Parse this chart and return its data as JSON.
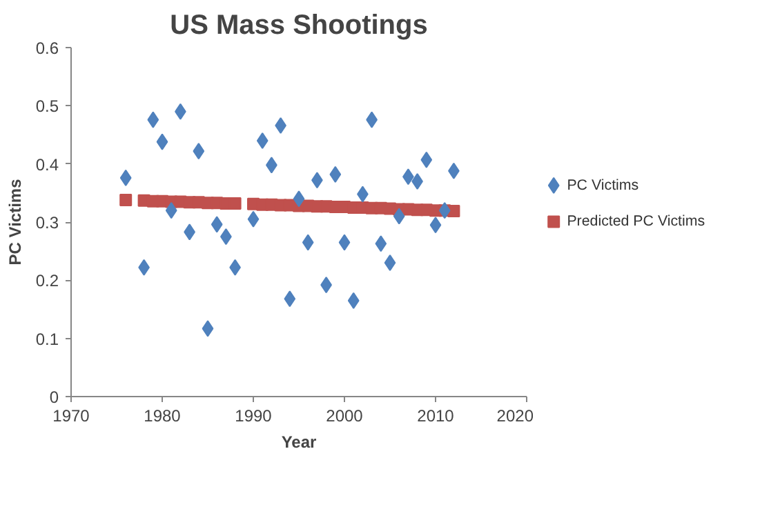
{
  "chart_data": {
    "type": "scatter",
    "title": "US Mass Shootings",
    "xlabel": "Year",
    "ylabel": "PC Victims",
    "xlim": [
      1970,
      2020
    ],
    "xticks": [
      1970,
      1980,
      1990,
      2000,
      2010,
      2020
    ],
    "ylim": [
      0,
      0.6
    ],
    "yticks": [
      0,
      0.1,
      0.2,
      0.3,
      0.4,
      0.5,
      0.6
    ],
    "grid": false,
    "legend": "right",
    "series": [
      {
        "name": "PC Victims",
        "color": "#4f81bd",
        "marker": "diamond",
        "x": [
          1976,
          1978,
          1979,
          1980,
          1981,
          1982,
          1983,
          1984,
          1985,
          1986,
          1987,
          1988,
          1990,
          1991,
          1992,
          1993,
          1994,
          1995,
          1996,
          1997,
          1998,
          1999,
          2000,
          2001,
          2002,
          2003,
          2004,
          2005,
          2006,
          2007,
          2008,
          2009,
          2010,
          2011,
          2012
        ],
        "values": [
          0.376,
          0.222,
          0.476,
          0.438,
          0.32,
          0.49,
          0.283,
          0.422,
          0.117,
          0.296,
          0.275,
          0.222,
          0.305,
          0.44,
          0.398,
          0.466,
          0.168,
          0.34,
          0.265,
          0.372,
          0.192,
          0.382,
          0.265,
          0.165,
          0.348,
          0.476,
          0.263,
          0.23,
          0.31,
          0.378,
          0.37,
          0.407,
          0.295,
          0.32,
          0.388
        ]
      },
      {
        "name": "Predicted PC Victims",
        "color": "#c0504d",
        "marker": "square",
        "x": [
          1976,
          1978,
          1979,
          1980,
          1981,
          1982,
          1983,
          1984,
          1985,
          1986,
          1987,
          1988,
          1990,
          1991,
          1992,
          1993,
          1994,
          1995,
          1996,
          1997,
          1998,
          1999,
          2000,
          2001,
          2002,
          2003,
          2004,
          2005,
          2006,
          2007,
          2008,
          2009,
          2010,
          2011,
          2012
        ],
        "values": [
          0.338,
          0.337,
          0.336,
          0.336,
          0.335,
          0.335,
          0.334,
          0.334,
          0.333,
          0.333,
          0.332,
          0.332,
          0.331,
          0.33,
          0.33,
          0.329,
          0.329,
          0.328,
          0.328,
          0.327,
          0.327,
          0.326,
          0.326,
          0.325,
          0.325,
          0.324,
          0.324,
          0.323,
          0.322,
          0.322,
          0.321,
          0.321,
          0.32,
          0.32,
          0.319
        ]
      }
    ]
  }
}
